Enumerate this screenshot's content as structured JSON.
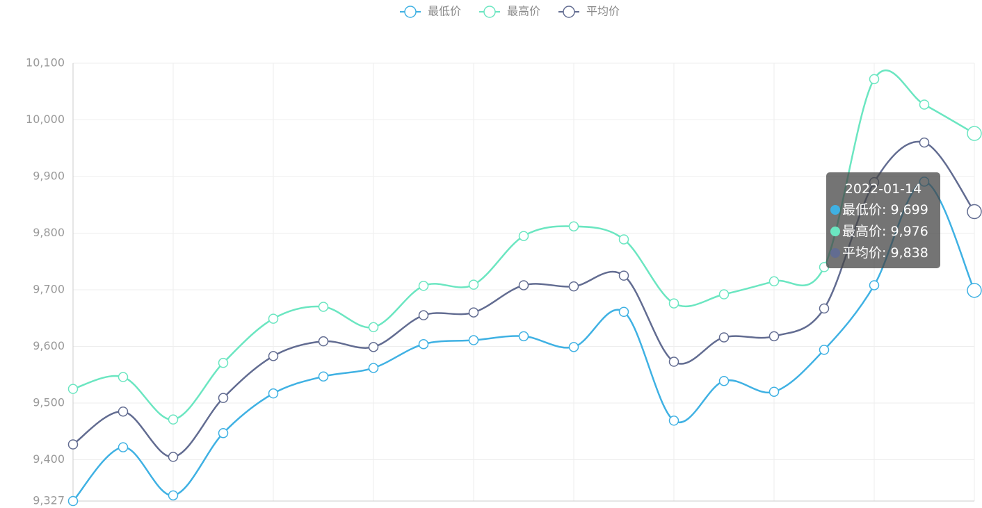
{
  "chart_data": {
    "type": "line",
    "categories": [
      null,
      null,
      null,
      null,
      null,
      null,
      null,
      null,
      null,
      null,
      null,
      null,
      null,
      null,
      null,
      null,
      null,
      null,
      "2022-01-14"
    ],
    "series": [
      {
        "name": "最低价",
        "color": "#3fb1e3",
        "values": [
          9327,
          9422,
          9337,
          9447,
          9517,
          9547,
          9562,
          9604,
          9611,
          9618,
          9599,
          9661,
          9469,
          9539,
          9520,
          9594,
          9708,
          9891,
          9699
        ],
        "value_labels": [
          null,
          null,
          null,
          null,
          null,
          null,
          null,
          null,
          null,
          null,
          null,
          null,
          null,
          null,
          null,
          null,
          null,
          null,
          "9,699"
        ]
      },
      {
        "name": "最高价",
        "color": "#6be6c1",
        "values": [
          9525,
          9546,
          9471,
          9571,
          9649,
          9670,
          9634,
          9707,
          9709,
          9795,
          9812,
          9789,
          9676,
          9692,
          9715,
          9740,
          10072,
          10027,
          9976
        ],
        "value_labels": [
          null,
          null,
          null,
          null,
          null,
          null,
          null,
          null,
          null,
          null,
          null,
          null,
          null,
          null,
          null,
          null,
          null,
          null,
          "9,976"
        ]
      },
      {
        "name": "平均价",
        "color": "#626c91",
        "values": [
          9427,
          9485,
          9405,
          9509,
          9583,
          9609,
          9599,
          9655,
          9660,
          9708,
          9706,
          9725,
          9573,
          9616,
          9618,
          9667,
          9890,
          9960,
          9838
        ],
        "value_labels": [
          null,
          null,
          null,
          null,
          null,
          null,
          null,
          null,
          null,
          null,
          null,
          null,
          null,
          null,
          null,
          null,
          null,
          null,
          "9,838"
        ]
      }
    ],
    "ylim": [
      9327,
      10100
    ],
    "yticks": [
      {
        "value": 9327,
        "label": "9,327"
      },
      {
        "value": 9400,
        "label": "9,400"
      },
      {
        "value": 9500,
        "label": "9,500"
      },
      {
        "value": 9600,
        "label": "9,600"
      },
      {
        "value": 9700,
        "label": "9,700"
      },
      {
        "value": 9800,
        "label": "9,800"
      },
      {
        "value": 9900,
        "label": "9,900"
      },
      {
        "value": 10000,
        "label": "10,000"
      },
      {
        "value": 10100,
        "label": "10,100"
      }
    ],
    "grid": true,
    "smooth": true,
    "legend": "top"
  }
}
